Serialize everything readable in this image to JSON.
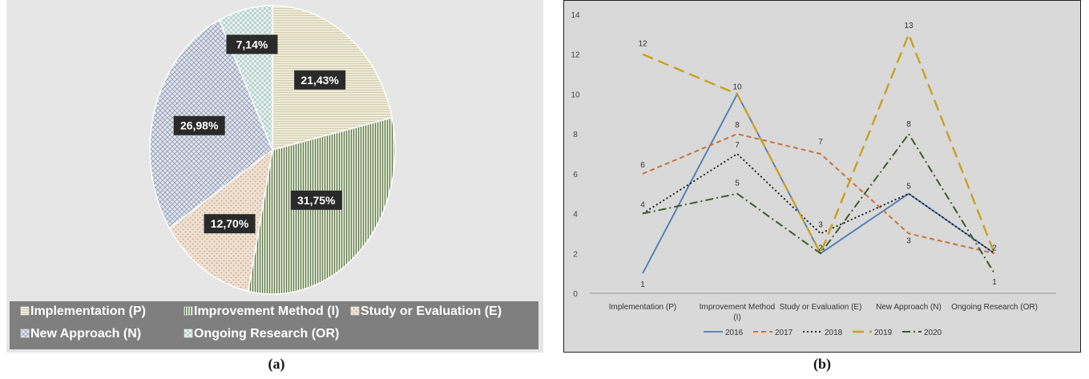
{
  "colors": {
    "p_bg": "#efebd8",
    "p_fg": "#c9c3a0",
    "i_bg": "#f2f4ec",
    "i_fg": "#5f7a45",
    "e_bg": "#efe1d2",
    "e_fg": "#c7a283",
    "n_bg": "#e2e6ee",
    "n_fg": "#8e9bb3",
    "or_bg": "#e8f1ef",
    "or_fg": "#97bfb4",
    "legend_bar": "#7f7f7f",
    "label_box": "#2a2a2a",
    "s2016": "#4a7ab8",
    "s2017": "#c8733e",
    "s2018": "#111111",
    "s2019": "#c9a020",
    "s2020": "#3d5c2a"
  },
  "captions": {
    "a": "(a)",
    "b": "(b)"
  },
  "chart_data": [
    {
      "type": "pie",
      "slices": [
        {
          "name": "Implementation (P)",
          "value": 21.43,
          "label": "21,43%",
          "pattern": "p"
        },
        {
          "name": "Improvement Method (I)",
          "value": 31.75,
          "label": "31,75%",
          "pattern": "i"
        },
        {
          "name": "Study or Evaluation (E)",
          "value": 12.7,
          "label": "12,70%",
          "pattern": "e"
        },
        {
          "name": "New Approach (N)",
          "value": 26.98,
          "label": "26,98%",
          "pattern": "n"
        },
        {
          "name": "Ongoing Research (OR)",
          "value": 7.14,
          "label": "7,14%",
          "pattern": "or"
        }
      ],
      "legend_position": "bottom"
    },
    {
      "type": "line",
      "categories": [
        "Implementation (P)",
        "Improvement Method (I)",
        "Study or Evaluation (E)",
        "New Approach (N)",
        "Ongoing Research (OR)"
      ],
      "yticks": [
        0,
        2,
        4,
        6,
        8,
        10,
        12,
        14
      ],
      "ylim": [
        0,
        14
      ],
      "grid": false,
      "legend_position": "bottom",
      "series": [
        {
          "name": "2016",
          "values": [
            1,
            10,
            2,
            5,
            2
          ],
          "labels": [
            "1",
            "10",
            "2",
            "5",
            "2"
          ],
          "color_key": "s2016",
          "dash": ""
        },
        {
          "name": "2017",
          "values": [
            6,
            8,
            7,
            3,
            2
          ],
          "labels": [
            "6",
            "8",
            "7",
            "3",
            ""
          ],
          "color_key": "s2017",
          "dash": "6,4"
        },
        {
          "name": "2018",
          "values": [
            4,
            7,
            3,
            5,
            2
          ],
          "labels": [
            "",
            "7",
            "3",
            "",
            ""
          ],
          "color_key": "s2018",
          "dash": "2,3"
        },
        {
          "name": "2019",
          "values": [
            12,
            10,
            2,
            13,
            2
          ],
          "labels": [
            "12",
            "",
            "",
            "13",
            ""
          ],
          "color_key": "s2019",
          "dash": "14,7"
        },
        {
          "name": "2020",
          "values": [
            4,
            5,
            2,
            8,
            1
          ],
          "labels": [
            "4",
            "5",
            "",
            "8",
            "1"
          ],
          "color_key": "s2020",
          "dash": "10,4,2,4"
        }
      ]
    }
  ]
}
